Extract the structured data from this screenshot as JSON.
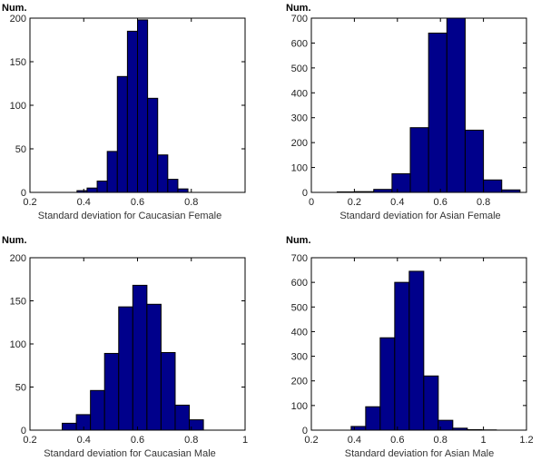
{
  "chart_data": [
    {
      "type": "bar",
      "title": "",
      "ylabel": "Num.",
      "xlabel": "Standard deviation for Caucasian Female",
      "xlim": [
        0.2,
        1.0
      ],
      "ylim": [
        0,
        200
      ],
      "xticks": [
        "0.2",
        "0.4",
        "0.6",
        "0.8"
      ],
      "xtick_values": [
        0.2,
        0.4,
        0.6,
        0.8
      ],
      "yticks": [
        "0",
        "50",
        "100",
        "150",
        "200"
      ],
      "ytick_values": [
        0,
        50,
        100,
        150,
        200
      ],
      "bin_edges": [
        0.375,
        0.4125,
        0.45,
        0.4875,
        0.525,
        0.5625,
        0.6,
        0.6375,
        0.675,
        0.7125,
        0.75,
        0.7875,
        0.825,
        0.8625,
        0.9,
        0.9375
      ],
      "values": [
        2,
        5,
        13,
        47,
        133,
        185,
        198,
        108,
        43,
        15,
        4,
        0,
        0,
        0,
        0
      ]
    },
    {
      "type": "bar",
      "title": "",
      "ylabel": "Num.",
      "xlabel": "Standard deviation for Asian Female",
      "xlim": [
        0,
        1.0
      ],
      "ylim": [
        0,
        700
      ],
      "xticks": [
        "0",
        "0.2",
        "0.4",
        "0.6",
        "0.8"
      ],
      "xtick_values": [
        0,
        0.2,
        0.4,
        0.6,
        0.8
      ],
      "yticks": [
        "0",
        "100",
        "200",
        "300",
        "400",
        "500",
        "600",
        "700"
      ],
      "ytick_values": [
        0,
        100,
        200,
        300,
        400,
        500,
        600,
        700
      ],
      "bin_edges": [
        0.12,
        0.205,
        0.29,
        0.375,
        0.46,
        0.545,
        0.63,
        0.715,
        0.8,
        0.885,
        0.97
      ],
      "values": [
        2,
        3,
        12,
        75,
        260,
        640,
        700,
        250,
        50,
        10
      ]
    },
    {
      "type": "bar",
      "title": "",
      "ylabel": "Num.",
      "xlabel": "Standard deviation for Caucasian Male",
      "xlim": [
        0.2,
        1.0
      ],
      "ylim": [
        0,
        200
      ],
      "xticks": [
        "0.2",
        "0.4",
        "0.6",
        "0.8",
        "1"
      ],
      "xtick_values": [
        0.2,
        0.4,
        0.6,
        0.8,
        1.0
      ],
      "yticks": [
        "0",
        "50",
        "100",
        "150",
        "200"
      ],
      "ytick_values": [
        0,
        50,
        100,
        150,
        200
      ],
      "bin_edges": [
        0.32,
        0.3725,
        0.425,
        0.4775,
        0.53,
        0.5825,
        0.635,
        0.6875,
        0.74,
        0.7925,
        0.845,
        0.8975
      ],
      "values": [
        8,
        18,
        46,
        89,
        143,
        168,
        146,
        90,
        29,
        12,
        0
      ]
    },
    {
      "type": "bar",
      "title": "",
      "ylabel": "Num.",
      "xlabel": "Standard deviation for Asian Male",
      "xlim": [
        0.2,
        1.2
      ],
      "ylim": [
        0,
        700
      ],
      "xticks": [
        "0.2",
        "0.4",
        "0.6",
        "0.8",
        "1",
        "1.2"
      ],
      "xtick_values": [
        0.2,
        0.4,
        0.6,
        0.8,
        1.0,
        1.2
      ],
      "yticks": [
        "0",
        "100",
        "200",
        "300",
        "400",
        "500",
        "600",
        "700"
      ],
      "ytick_values": [
        0,
        100,
        200,
        300,
        400,
        500,
        600,
        700
      ],
      "bin_edges": [
        0.385,
        0.4525,
        0.52,
        0.5875,
        0.655,
        0.7225,
        0.79,
        0.8575,
        0.925,
        0.9925,
        1.06
      ],
      "values": [
        15,
        95,
        375,
        600,
        645,
        220,
        40,
        8,
        2,
        1
      ]
    }
  ]
}
